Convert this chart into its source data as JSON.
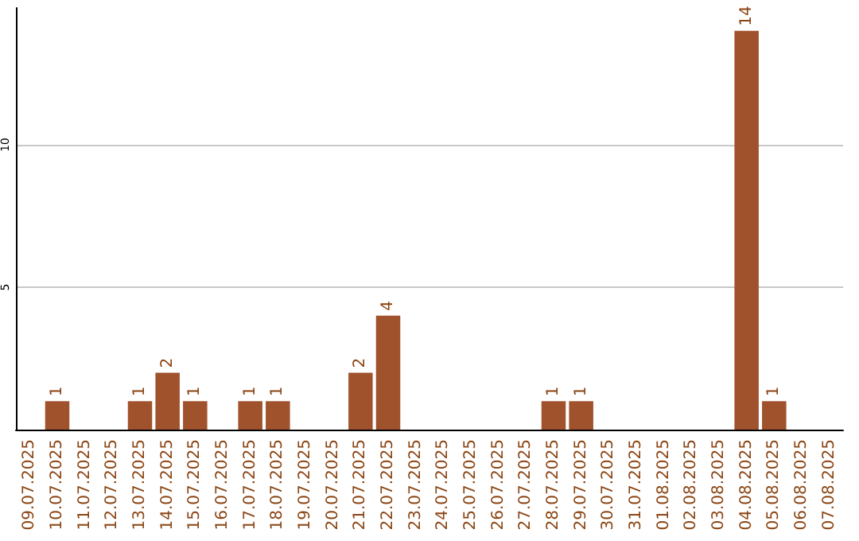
{
  "chart_data": {
    "type": "bar",
    "categories": [
      "09.07.2025",
      "10.07.2025",
      "11.07.2025",
      "12.07.2025",
      "13.07.2025",
      "14.07.2025",
      "15.07.2025",
      "16.07.2025",
      "17.07.2025",
      "18.07.2025",
      "19.07.2025",
      "20.07.2025",
      "21.07.2025",
      "22.07.2025",
      "23.07.2025",
      "24.07.2025",
      "25.07.2025",
      "26.07.2025",
      "27.07.2025",
      "28.07.2025",
      "29.07.2025",
      "30.07.2025",
      "31.07.2025",
      "01.08.2025",
      "02.08.2025",
      "03.08.2025",
      "04.08.2025",
      "05.08.2025",
      "06.08.2025",
      "07.08.2025"
    ],
    "values": [
      0,
      1,
      0,
      0,
      1,
      2,
      1,
      0,
      1,
      1,
      0,
      0,
      2,
      4,
      0,
      0,
      0,
      0,
      0,
      1,
      1,
      0,
      0,
      0,
      0,
      0,
      14,
      1,
      0,
      0
    ],
    "value_labels": [
      null,
      "1",
      null,
      null,
      "1",
      "2",
      "1",
      null,
      "1",
      "1",
      null,
      null,
      "2",
      "4",
      null,
      null,
      null,
      null,
      null,
      "1",
      "1",
      null,
      null,
      null,
      null,
      null,
      "14",
      "1",
      null,
      null
    ],
    "color": "#a0522d",
    "ylim": [
      0,
      14.8
    ],
    "yticks": [
      5,
      10
    ],
    "grid": "y"
  }
}
